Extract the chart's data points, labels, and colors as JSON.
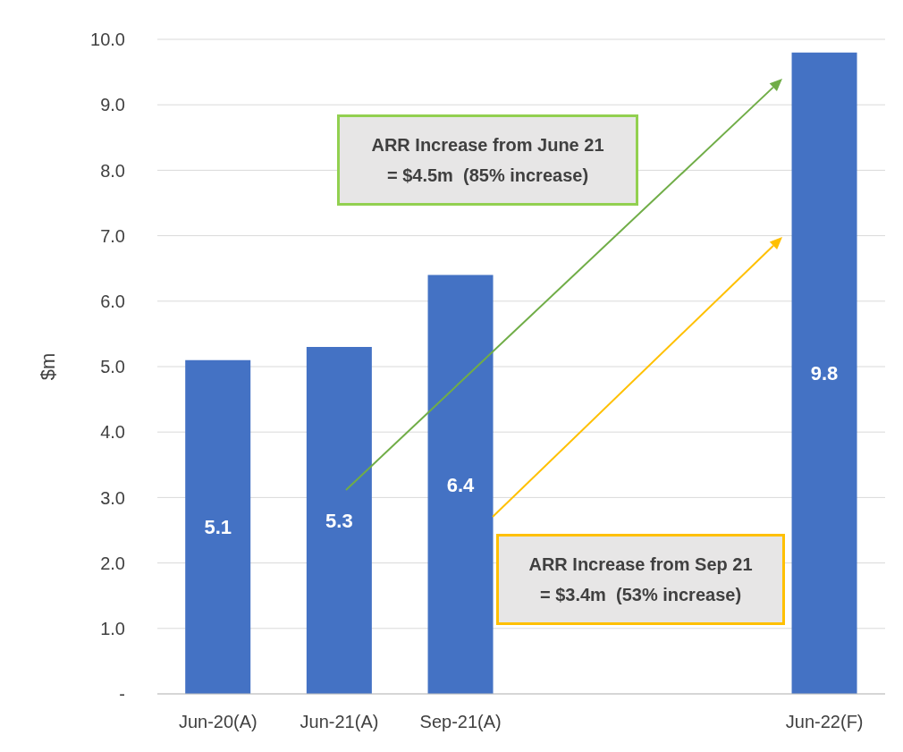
{
  "chart_data": {
    "type": "bar",
    "ylabel": "$m",
    "categories": [
      "Jun-20(A)",
      "Jun-21(A)",
      "Sep-21(A)",
      null,
      null,
      "Jun-22(F)"
    ],
    "values": [
      5.1,
      5.3,
      6.4,
      null,
      null,
      9.8
    ],
    "color": "#4472c4",
    "ylim": [
      0,
      10
    ],
    "yticks": [
      {
        "value": 0,
        "label": "-"
      },
      {
        "value": 1,
        "label": "1.0"
      },
      {
        "value": 2,
        "label": "2.0"
      },
      {
        "value": 3,
        "label": "3.0"
      },
      {
        "value": 4,
        "label": "4.0"
      },
      {
        "value": 5,
        "label": "5.0"
      },
      {
        "value": 6,
        "label": "6.0"
      },
      {
        "value": 7,
        "label": "7.0"
      },
      {
        "value": 8,
        "label": "8.0"
      },
      {
        "value": 9,
        "label": "9.0"
      },
      {
        "value": 10,
        "label": "10.0"
      }
    ],
    "grid": "y",
    "data_labels": true,
    "legend": false,
    "annotations": [
      "ARR Increase from June 21\n= $4.5m  (85% increase)",
      "ARR Increase from Sep 21\n= $3.4m  (53% increase)"
    ]
  }
}
